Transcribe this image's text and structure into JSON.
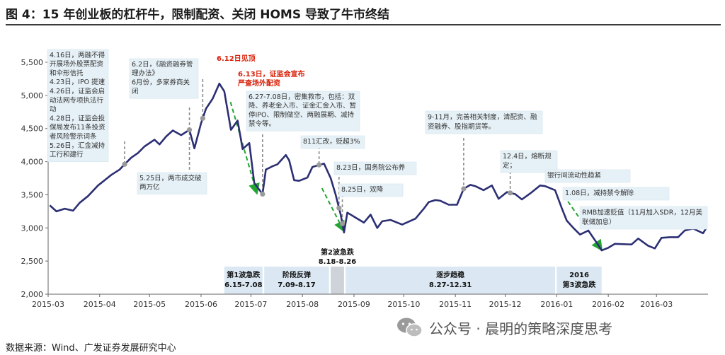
{
  "title": "图 4：15 年创业板的杠杆牛，限制配资、关闭 HOMS 导致了牛市终结",
  "source": "数据来源：Wind、广发证券发展研究中心",
  "watermark": "公众号 · 晨明的策略深度思考",
  "chart_data": {
    "type": "line",
    "title": "",
    "xlabel": "",
    "ylabel": "",
    "ylim": [
      2000,
      5500
    ],
    "yticks": [
      "2,000",
      "2,500",
      "3,000",
      "3,500",
      "4,000",
      "4,500",
      "5,000",
      "5,500"
    ],
    "xticks": [
      "2015-03",
      "2015-04",
      "2015-05",
      "2015-06",
      "2015-07",
      "2015-08",
      "2015-09",
      "2015-10",
      "2015-11",
      "2015-12",
      "2016-01",
      "2016-02",
      "2016-03"
    ],
    "line_color": "#2c2f73",
    "series": [
      {
        "points": [
          [
            "2015-03-02",
            3340
          ],
          [
            "2015-03-06",
            3250
          ],
          [
            "2015-03-11",
            3290
          ],
          [
            "2015-03-16",
            3260
          ],
          [
            "2015-03-20",
            3380
          ],
          [
            "2015-03-25",
            3480
          ],
          [
            "2015-03-31",
            3640
          ],
          [
            "2015-04-03",
            3700
          ],
          [
            "2015-04-08",
            3800
          ],
          [
            "2015-04-13",
            3880
          ],
          [
            "2015-04-16",
            3960
          ],
          [
            "2015-04-20",
            4060
          ],
          [
            "2015-04-24",
            4130
          ],
          [
            "2015-04-28",
            4230
          ],
          [
            "2015-05-04",
            4330
          ],
          [
            "2015-05-07",
            4260
          ],
          [
            "2015-05-11",
            4380
          ],
          [
            "2015-05-15",
            4470
          ],
          [
            "2015-05-20",
            4400
          ],
          [
            "2015-05-25",
            4480
          ],
          [
            "2015-05-28",
            4200
          ],
          [
            "2015-06-01",
            4580
          ],
          [
            "2015-06-04",
            4800
          ],
          [
            "2015-06-08",
            4950
          ],
          [
            "2015-06-12",
            5178
          ],
          [
            "2015-06-15",
            5060
          ],
          [
            "2015-06-19",
            4480
          ],
          [
            "2015-06-23",
            4620
          ],
          [
            "2015-06-26",
            4190
          ],
          [
            "2015-06-30",
            4280
          ],
          [
            "2015-07-03",
            3680
          ],
          [
            "2015-07-08",
            3510
          ],
          [
            "2015-07-10",
            3880
          ],
          [
            "2015-07-14",
            3930
          ],
          [
            "2015-07-17",
            3960
          ],
          [
            "2015-07-22",
            4100
          ],
          [
            "2015-07-24",
            4020
          ],
          [
            "2015-07-27",
            3720
          ],
          [
            "2015-07-30",
            3710
          ],
          [
            "2015-08-04",
            3760
          ],
          [
            "2015-08-07",
            3920
          ],
          [
            "2015-08-11",
            3950
          ],
          [
            "2015-08-14",
            3970
          ],
          [
            "2015-08-18",
            3750
          ],
          [
            "2015-08-21",
            3500
          ],
          [
            "2015-08-24",
            3200
          ],
          [
            "2015-08-26",
            2930
          ],
          [
            "2015-08-28",
            3230
          ],
          [
            "2015-09-01",
            3170
          ],
          [
            "2015-09-07",
            3080
          ],
          [
            "2015-09-11",
            3200
          ],
          [
            "2015-09-15",
            3000
          ],
          [
            "2015-09-18",
            3100
          ],
          [
            "2015-09-23",
            3120
          ],
          [
            "2015-09-30",
            3050
          ],
          [
            "2015-10-08",
            3140
          ],
          [
            "2015-10-13",
            3290
          ],
          [
            "2015-10-16",
            3390
          ],
          [
            "2015-10-20",
            3420
          ],
          [
            "2015-10-23",
            3410
          ],
          [
            "2015-10-28",
            3350
          ],
          [
            "2015-11-02",
            3350
          ],
          [
            "2015-11-06",
            3590
          ],
          [
            "2015-11-10",
            3650
          ],
          [
            "2015-11-13",
            3630
          ],
          [
            "2015-11-18",
            3570
          ],
          [
            "2015-11-23",
            3640
          ],
          [
            "2015-11-27",
            3440
          ],
          [
            "2015-12-02",
            3540
          ],
          [
            "2015-12-07",
            3510
          ],
          [
            "2015-12-11",
            3430
          ],
          [
            "2015-12-16",
            3520
          ],
          [
            "2015-12-22",
            3640
          ],
          [
            "2015-12-25",
            3630
          ],
          [
            "2015-12-31",
            3570
          ],
          [
            "2016-01-04",
            3300
          ],
          [
            "2016-01-07",
            3110
          ],
          [
            "2016-01-11",
            3000
          ],
          [
            "2016-01-15",
            2900
          ],
          [
            "2016-01-20",
            2960
          ],
          [
            "2016-01-26",
            2740
          ],
          [
            "2016-01-28",
            2660
          ],
          [
            "2016-02-01",
            2700
          ],
          [
            "2016-02-05",
            2760
          ],
          [
            "2016-02-15",
            2750
          ],
          [
            "2016-02-19",
            2840
          ],
          [
            "2016-02-25",
            2730
          ],
          [
            "2016-02-29",
            2690
          ],
          [
            "2016-03-04",
            2850
          ],
          [
            "2016-03-09",
            2860
          ],
          [
            "2016-03-14",
            2860
          ],
          [
            "2016-03-18",
            2960
          ],
          [
            "2016-03-23",
            2990
          ],
          [
            "2016-03-29",
            2920
          ],
          [
            "2016-03-31",
            3000
          ]
        ]
      }
    ],
    "events": [
      {
        "text": "4.16日，两融不得开展场外股票配资和伞形信托\n4.23日，IPO 提速\n4.26日，证监会启动法网专项执法行动\n4.28日，证监会投保局发布11条投资者风险警示词条\n5.26日，汇金减持工行和建行",
        "date": "2015-04-16",
        "style": "normal"
      },
      {
        "text": "5.25日，两市成交破两万亿",
        "date": "2015-05-25",
        "style": "normal"
      },
      {
        "text": "6.2日，《融资融券管理办法》\n6月份，多家券商关闭",
        "date": "2015-06-02",
        "style": "normal"
      },
      {
        "text": "6.12日见顶",
        "date": "2015-06-12",
        "style": "red"
      },
      {
        "text": "6.13日，证监会宣布严查场外配资",
        "date": "2015-06-13",
        "style": "red"
      },
      {
        "text": "6.27-7.08日，密集救市，包括：双降、养老金入市、证金汇金入市、暂停IPO、限制做空、两融展期、减持禁令等。",
        "date": "2015-07-08",
        "style": "normal"
      },
      {
        "text": "811汇改，贬超3%",
        "date": "2015-08-11",
        "style": "normal"
      },
      {
        "text": "8.23日，国务院公布养",
        "date": "2015-08-23",
        "style": "normal"
      },
      {
        "text": "8.25日，双降",
        "date": "2015-08-25",
        "style": "normal"
      },
      {
        "text": "9-11月，完善相关制度，清配资、融资融券、股指期货等。",
        "date": "2015-11-06",
        "style": "normal"
      },
      {
        "text": "12.4日，熔断规定；",
        "date": "2015-12-04",
        "style": "normal"
      },
      {
        "text": "银行间流动性趋紧",
        "date": "",
        "style": "normal"
      },
      {
        "text": "1.08日，减持禁令解除",
        "date": "",
        "style": "normal"
      },
      {
        "text": "RMB加速贬值（11月加入SDR，12月美联储加息）",
        "date": "",
        "style": "normal"
      }
    ],
    "phases": [
      {
        "label": "第1波急跌",
        "range_label": "6.15-7.08",
        "start": "2015-06-15",
        "end": "2015-07-08",
        "shade": true
      },
      {
        "label": "阶段反弹",
        "range_label": "7.09-8.17",
        "start": "2015-07-09",
        "end": "2015-08-17",
        "shade": true
      },
      {
        "label": "",
        "range_label": "",
        "start": "2015-08-18",
        "end": "2015-08-26",
        "shade": true,
        "dark": true
      },
      {
        "label": "逐步趋稳",
        "range_label": "8.27-12.31",
        "start": "2015-08-27",
        "end": "2015-12-31",
        "shade": true
      },
      {
        "label": "2016",
        "range_label": "第3波急跌",
        "start": "2016-01-01",
        "end": "2016-01-28",
        "shade": true
      }
    ],
    "phase2_label": {
      "label": "第2波急跌",
      "range_label": "8.18-8.26"
    }
  }
}
